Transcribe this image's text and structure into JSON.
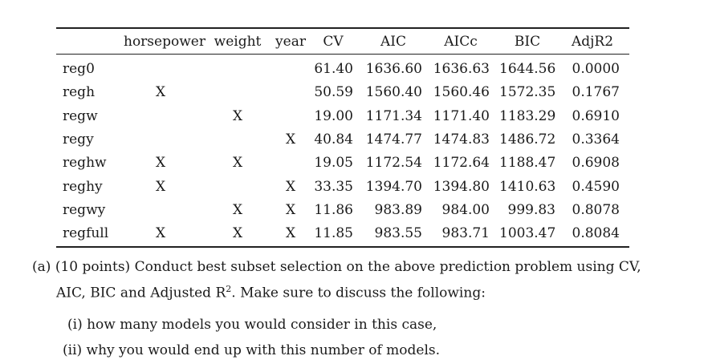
{
  "table": {
    "headers": [
      "",
      "horsepower",
      "weight",
      "year",
      "CV",
      "AIC",
      "AICc",
      "BIC",
      "AdjR2"
    ],
    "rows": [
      {
        "name": "reg0",
        "hp": "",
        "wt": "",
        "yr": "",
        "cv": "61.40",
        "aic": "1636.60",
        "aicc": "1636.63",
        "bic": "1644.56",
        "adjr2": "0.0000"
      },
      {
        "name": "regh",
        "hp": "X",
        "wt": "",
        "yr": "",
        "cv": "50.59",
        "aic": "1560.40",
        "aicc": "1560.46",
        "bic": "1572.35",
        "adjr2": "0.1767"
      },
      {
        "name": "regw",
        "hp": "",
        "wt": "X",
        "yr": "",
        "cv": "19.00",
        "aic": "1171.34",
        "aicc": "1171.40",
        "bic": "1183.29",
        "adjr2": "0.6910"
      },
      {
        "name": "regy",
        "hp": "",
        "wt": "",
        "yr": "X",
        "cv": "40.84",
        "aic": "1474.77",
        "aicc": "1474.83",
        "bic": "1486.72",
        "adjr2": "0.3364"
      },
      {
        "name": "reghw",
        "hp": "X",
        "wt": "X",
        "yr": "",
        "cv": "19.05",
        "aic": "1172.54",
        "aicc": "1172.64",
        "bic": "1188.47",
        "adjr2": "0.6908"
      },
      {
        "name": "reghy",
        "hp": "X",
        "wt": "",
        "yr": "X",
        "cv": "33.35",
        "aic": "1394.70",
        "aicc": "1394.80",
        "bic": "1410.63",
        "adjr2": "0.4590"
      },
      {
        "name": "regwy",
        "hp": "",
        "wt": "X",
        "yr": "X",
        "cv": "11.86",
        "aic": "983.89",
        "aicc": "984.00",
        "bic": "999.83",
        "adjr2": "0.8078"
      },
      {
        "name": "regfull",
        "hp": "X",
        "wt": "X",
        "yr": "X",
        "cv": "11.85",
        "aic": "983.55",
        "aicc": "983.71",
        "bic": "1003.47",
        "adjr2": "0.8084"
      }
    ]
  },
  "question": {
    "label": "(a)",
    "line1": "(10 points) Conduct best subset selection on the above prediction problem using CV,",
    "line2_pre": "AIC, BIC and Adjusted R",
    "line2_sup": "2",
    "line2_post": ". Make sure to discuss the following:",
    "items": [
      {
        "label": "(i)",
        "text": "how many models you would consider in this case,"
      },
      {
        "label": "(ii)",
        "text": "why you would end up with this number of models."
      }
    ]
  }
}
